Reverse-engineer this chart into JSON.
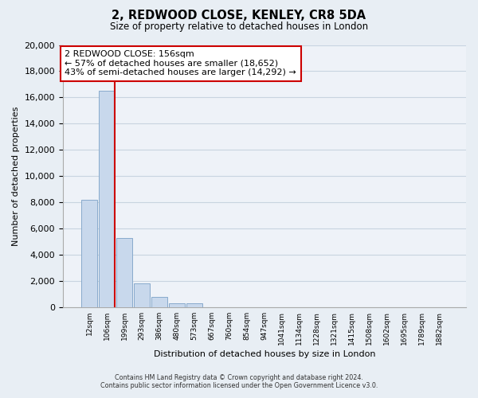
{
  "title": "2, REDWOOD CLOSE, KENLEY, CR8 5DA",
  "subtitle": "Size of property relative to detached houses in London",
  "xlabel": "Distribution of detached houses by size in London",
  "ylabel": "Number of detached properties",
  "bar_color": "#c8d8ec",
  "bar_edge_color": "#88aacc",
  "vline_color": "#cc0000",
  "annotation_title": "2 REDWOOD CLOSE: 156sqm",
  "annotation_line1": "← 57% of detached houses are smaller (18,652)",
  "annotation_line2": "43% of semi-detached houses are larger (14,292) →",
  "annotation_box_color": "#ffffff",
  "annotation_box_edge": "#cc0000",
  "categories": [
    "12sqm",
    "106sqm",
    "199sqm",
    "293sqm",
    "386sqm",
    "480sqm",
    "573sqm",
    "667sqm",
    "760sqm",
    "854sqm",
    "947sqm",
    "1041sqm",
    "1134sqm",
    "1228sqm",
    "1321sqm",
    "1415sqm",
    "1508sqm",
    "1602sqm",
    "1695sqm",
    "1789sqm",
    "1882sqm"
  ],
  "values": [
    8200,
    16500,
    5300,
    1800,
    800,
    300,
    300,
    0,
    0,
    0,
    0,
    0,
    0,
    0,
    0,
    0,
    0,
    0,
    0,
    0,
    0
  ],
  "ylim": [
    0,
    20000
  ],
  "yticks": [
    0,
    2000,
    4000,
    6000,
    8000,
    10000,
    12000,
    14000,
    16000,
    18000,
    20000
  ],
  "footer_line1": "Contains HM Land Registry data © Crown copyright and database right 2024.",
  "footer_line2": "Contains public sector information licensed under the Open Government Licence v3.0.",
  "bg_color": "#e8eef4",
  "plot_bg_color": "#eef2f8",
  "grid_color": "#c8d4e0"
}
